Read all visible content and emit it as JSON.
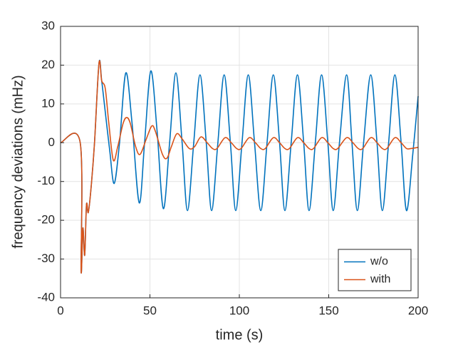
{
  "chart_data": {
    "type": "line",
    "xlabel": "time (s)",
    "ylabel": "frequency deviations (mHz)",
    "xlim": [
      0,
      200
    ],
    "xticks": [
      0,
      50,
      100,
      150,
      200
    ],
    "ylim": [
      -40,
      30
    ],
    "yticks": [
      -40,
      -30,
      -20,
      -10,
      0,
      10,
      20,
      30
    ],
    "grid": true,
    "legend": "lower right",
    "series": [
      {
        "name": "w/o",
        "color": "#0072BD",
        "x": [
          0,
          11,
          11.5,
          12.5,
          13.5,
          14.5,
          15.5,
          17,
          19,
          21.5,
          23,
          25,
          27.5,
          30,
          33,
          36.5,
          40,
          44,
          47,
          50.5,
          54,
          57.5,
          61,
          64.5,
          68,
          71,
          74.5,
          78,
          81.5,
          84.5,
          88,
          91.5,
          95,
          98,
          101.5,
          105,
          108.5,
          112,
          115.5,
          119,
          122.5,
          125.5,
          129,
          132.5,
          136,
          139,
          142.5,
          146,
          149.5,
          152.5,
          156,
          160,
          163,
          166,
          169.5,
          173.5,
          177,
          180,
          183.5,
          187,
          190.5,
          193.5,
          197,
          200
        ],
        "values": [
          0,
          0,
          -33,
          -22,
          -29,
          -16,
          -18,
          -12,
          0,
          20.5,
          16,
          8,
          -2,
          -10.5,
          0,
          18,
          5,
          -15.5,
          0,
          18.5,
          3,
          -17,
          0,
          18,
          0,
          -17.5,
          0,
          17.5,
          0,
          -17.5,
          0,
          17.5,
          0,
          -17.5,
          0,
          17.5,
          0,
          -17.5,
          0,
          17.5,
          0,
          -17.5,
          0,
          17.5,
          0,
          -17.5,
          0,
          17.5,
          0,
          -17.5,
          0,
          17.5,
          0,
          -17.5,
          0,
          17.5,
          0,
          -17.5,
          0,
          17.5,
          0,
          -17.5,
          -3,
          12
        ]
      },
      {
        "name": "with",
        "color": "#D95319",
        "x": [
          0,
          11,
          11.5,
          12.5,
          13.5,
          14.5,
          15.5,
          17,
          19,
          21.5,
          23,
          25,
          27,
          29.5,
          32,
          35,
          37,
          39,
          42,
          44.5,
          48,
          51,
          53,
          57,
          59.5,
          62,
          65,
          68,
          72,
          75,
          78.5,
          82,
          85,
          87.5,
          92,
          95.5,
          98.5,
          101,
          105.5,
          109,
          112,
          114.5,
          119,
          122.5,
          125.5,
          128,
          132.5,
          136,
          139,
          141.5,
          146,
          149.5,
          152.5,
          155,
          160,
          163.5,
          166.5,
          169,
          173.5,
          177,
          180,
          182.5,
          187,
          190.5,
          193.5,
          196,
          200
        ],
        "values": [
          0,
          0,
          -33,
          -22,
          -29,
          -16,
          -18,
          -12,
          0,
          20.5,
          16,
          14,
          5,
          -4.5,
          -1,
          5,
          6.5,
          5,
          -1,
          -3,
          1,
          4.3,
          3,
          -3,
          -4,
          -1,
          2.3,
          1,
          -1.5,
          -1,
          1.5,
          0,
          -1.5,
          -1.5,
          1.3,
          0,
          -1.5,
          -1.5,
          1.3,
          0,
          -1.5,
          -1.5,
          1.3,
          0,
          -1.5,
          -1.5,
          1.3,
          0,
          -1.5,
          -1.5,
          1.3,
          0,
          -1.5,
          -1.5,
          1.3,
          0,
          -1.5,
          -1.5,
          1.3,
          0,
          -1.5,
          -1.5,
          1.3,
          0,
          -1.5,
          -1.5,
          -1.2
        ]
      }
    ]
  }
}
